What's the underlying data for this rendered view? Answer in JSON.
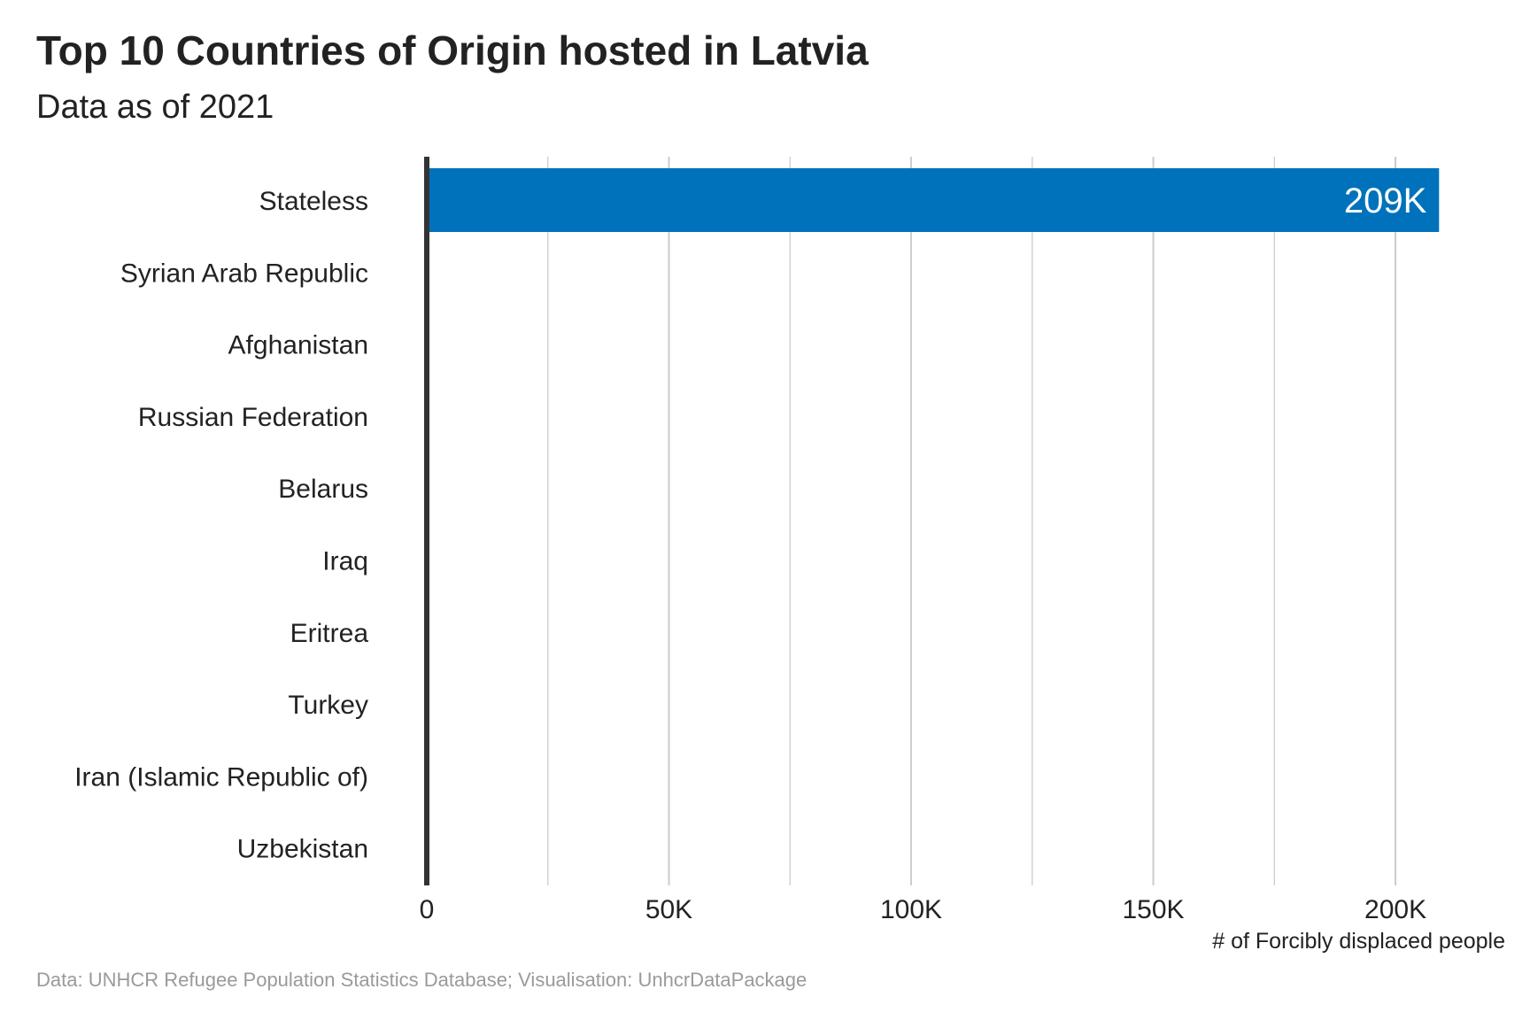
{
  "chart_data": {
    "type": "bar",
    "orientation": "horizontal",
    "title": "Top 10 Countries of Origin hosted in Latvia",
    "subtitle": "Data as of 2021",
    "xlabel": "# of Forcibly displaced people",
    "ylabel": "",
    "categories": [
      "Stateless",
      "Syrian Arab Republic",
      "Afghanistan",
      "Russian Federation",
      "Belarus",
      "Iraq",
      "Eritrea",
      "Turkey",
      "Iran (Islamic Republic of)",
      "Uzbekistan"
    ],
    "values": [
      209000,
      0,
      0,
      0,
      0,
      0,
      0,
      0,
      0,
      0
    ],
    "data_labels": [
      "209K",
      "",
      "",
      "",
      "",
      "",
      "",
      "",
      "",
      ""
    ],
    "xlim": [
      0,
      219000
    ],
    "xticks": [
      0,
      50000,
      100000,
      150000,
      200000
    ],
    "xtick_labels": [
      "0",
      "50K",
      "100K",
      "150K",
      "200K"
    ],
    "minor_gridlines": [
      25000,
      75000,
      125000,
      175000
    ],
    "grid": "vertical",
    "bar_color": "#0072bc",
    "axis_color": "#333333",
    "grid_color": "#cccccc",
    "caption": "Data: UNHCR Refugee Population Statistics Database; Visualisation: UnhcrDataPackage"
  }
}
